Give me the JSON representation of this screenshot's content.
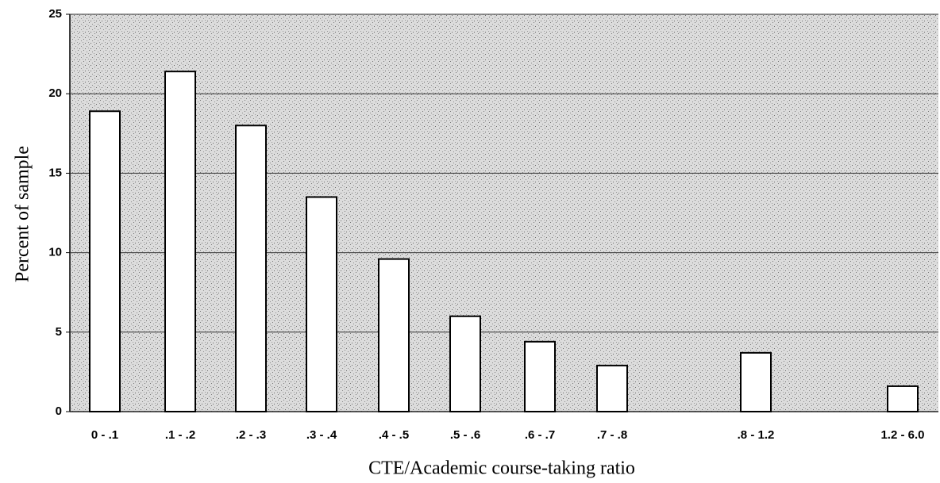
{
  "chart_data": {
    "type": "bar",
    "x_label": "CTE/Academic course-taking ratio",
    "y_label": "Percent of sample",
    "categories": [
      "0 - .1",
      ".1 - .2",
      ".2 - .3",
      ".3 - .4",
      ".4 - .5",
      ".5 - .6",
      ".6 - .7",
      ".7 - .8",
      ".8 - 1.2",
      "1.2 - 6.0"
    ],
    "values": [
      18.9,
      21.4,
      18.0,
      13.5,
      9.6,
      6.0,
      4.4,
      2.9,
      3.7,
      1.6
    ],
    "color": "#ffffff",
    "ylim": [
      0,
      25
    ],
    "yticks": [
      0,
      5,
      10,
      15,
      20,
      25
    ],
    "grid": true
  }
}
